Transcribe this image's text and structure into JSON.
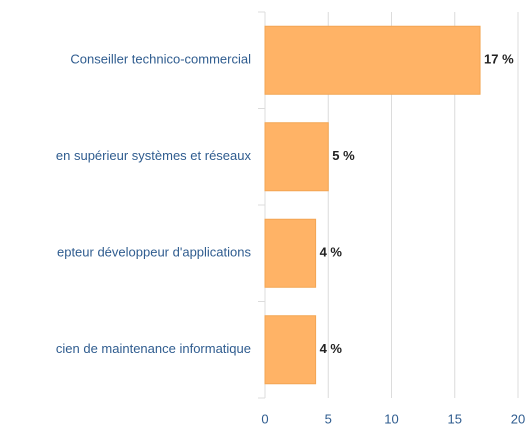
{
  "chart_data": {
    "type": "bar",
    "orientation": "horizontal",
    "categories": [
      "Conseiller technico-commercial",
      "en supérieur systèmes et réseaux",
      "epteur développeur d'applications",
      "cien de maintenance informatique"
    ],
    "values": [
      17,
      5,
      4,
      4
    ],
    "value_labels": [
      "17 %",
      "5 %",
      "4 %",
      "4 %"
    ],
    "color": "#ffb366",
    "xlim": [
      0,
      20
    ],
    "xticks": [
      0,
      5,
      10,
      15,
      20
    ],
    "grid": true
  }
}
